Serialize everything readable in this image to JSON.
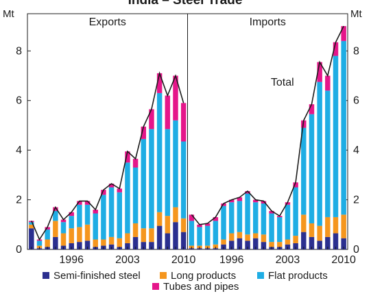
{
  "chart_data": {
    "type": "bar",
    "stacked": true,
    "title": "India – Steel Trade",
    "unit_left": "Mt",
    "unit_right": "Mt",
    "ylim": [
      0,
      9.5
    ],
    "yticks": [
      0,
      2,
      4,
      6,
      8
    ],
    "xtick_labels": [
      "1996",
      "2003",
      "2010"
    ],
    "colors": {
      "semi": "#2b2f8f",
      "long": "#f5961e",
      "flat": "#1fade4",
      "tubes": "#e5168a",
      "total_line": "#1a1a1a"
    },
    "legend": [
      {
        "key": "semi",
        "label": "Semi-finished steel"
      },
      {
        "key": "long",
        "label": "Long products"
      },
      {
        "key": "flat",
        "label": "Flat products"
      },
      {
        "key": "tubes",
        "label": "Tubes and pipes"
      }
    ],
    "panels": [
      {
        "name": "Exports",
        "x": [
          "1991",
          "1992",
          "1993",
          "1994",
          "1995",
          "1996",
          "1997",
          "1998",
          "1999",
          "2000",
          "2001",
          "2002",
          "2003",
          "2004",
          "2005",
          "2006",
          "2007",
          "2008",
          "2009",
          "2010"
        ],
        "series": [
          {
            "key": "semi",
            "name": "Semi-finished steel",
            "values": [
              0.85,
              0.05,
              0.1,
              0.5,
              0.15,
              0.25,
              0.3,
              0.35,
              0.1,
              0.15,
              0.2,
              0.1,
              0.25,
              0.5,
              0.3,
              0.3,
              0.95,
              0.65,
              1.1,
              0.7
            ]
          },
          {
            "key": "long",
            "name": "Long products",
            "values": [
              0.15,
              0.1,
              0.3,
              0.65,
              0.5,
              0.6,
              0.6,
              0.65,
              0.3,
              0.25,
              0.3,
              0.35,
              0.4,
              0.55,
              0.55,
              0.55,
              0.55,
              0.7,
              0.6,
              0.55
            ]
          },
          {
            "key": "flat",
            "name": "Flat products",
            "values": [
              0.1,
              0.2,
              0.4,
              0.4,
              0.45,
              0.5,
              0.9,
              0.8,
              1.05,
              1.8,
              2.0,
              1.85,
              2.85,
              2.25,
              3.6,
              4.0,
              4.8,
              3.5,
              3.5,
              3.1
            ]
          },
          {
            "key": "tubes",
            "name": "Tubes and pipes",
            "values": [
              0.05,
              0.05,
              0.1,
              0.15,
              0.1,
              0.15,
              0.15,
              0.15,
              0.15,
              0.2,
              0.15,
              0.15,
              0.45,
              0.35,
              0.5,
              0.8,
              0.8,
              1.35,
              1.8,
              1.55
            ]
          }
        ]
      },
      {
        "name": "Imports",
        "x": [
          "1991",
          "1992",
          "1993",
          "1994",
          "1995",
          "1996",
          "1997",
          "1998",
          "1999",
          "2000",
          "2001",
          "2002",
          "2003",
          "2004",
          "2005",
          "2006",
          "2007",
          "2008",
          "2009",
          "2010"
        ],
        "series": [
          {
            "key": "semi",
            "name": "Semi-finished steel",
            "values": [
              0.05,
              0.05,
              0.05,
              0.05,
              0.2,
              0.35,
              0.45,
              0.35,
              0.45,
              0.3,
              0.1,
              0.1,
              0.2,
              0.25,
              0.7,
              0.5,
              0.35,
              0.5,
              0.65,
              0.45
            ]
          },
          {
            "key": "long",
            "name": "Long products",
            "values": [
              0.1,
              0.1,
              0.1,
              0.15,
              0.2,
              0.3,
              0.25,
              0.25,
              0.2,
              0.3,
              0.2,
              0.2,
              0.2,
              0.3,
              0.7,
              0.55,
              0.6,
              0.8,
              0.65,
              0.95
            ]
          },
          {
            "key": "flat",
            "name": "Flat products",
            "values": [
              1.0,
              0.75,
              0.8,
              0.95,
              1.35,
              1.25,
              1.25,
              1.65,
              1.25,
              1.25,
              1.15,
              1.0,
              1.4,
              1.95,
              3.5,
              4.4,
              5.8,
              5.1,
              6.5,
              7.0
            ]
          },
          {
            "key": "tubes",
            "name": "Tubes and pipes",
            "values": [
              0.25,
              0.1,
              0.1,
              0.15,
              0.1,
              0.1,
              0.15,
              0.1,
              0.1,
              0.1,
              0.1,
              0.05,
              0.1,
              0.2,
              0.3,
              0.4,
              0.8,
              0.6,
              0.55,
              0.6
            ]
          }
        ],
        "annotation": "Total"
      }
    ]
  }
}
